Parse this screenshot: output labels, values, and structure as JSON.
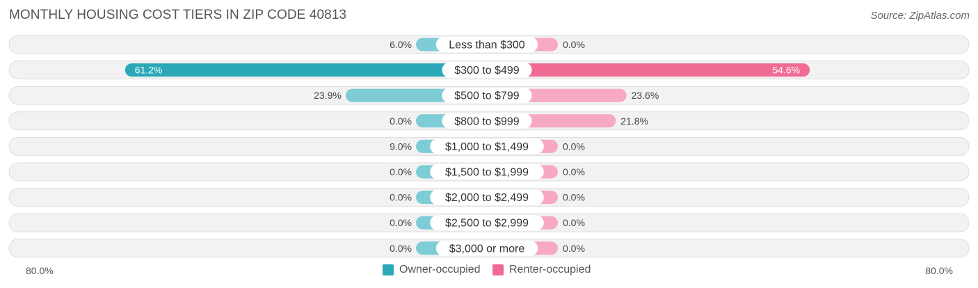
{
  "title": "MONTHLY HOUSING COST TIERS IN ZIP CODE 40813",
  "source": "Source: ZipAtlas.com",
  "colors": {
    "owner_strong": "#2aa8b8",
    "owner_light": "#7ecdd6",
    "renter_strong": "#f06b93",
    "renter_light": "#f7a8c3",
    "row_bg": "#f2f2f2",
    "row_border": "#dddddd"
  },
  "chart_data": {
    "type": "bar",
    "orientation": "horizontal-diverging",
    "categories": [
      "Less than $300",
      "$300 to $499",
      "$500 to $799",
      "$800 to $999",
      "$1,000 to $1,499",
      "$1,500 to $1,999",
      "$2,000 to $2,499",
      "$2,500 to $2,999",
      "$3,000 or more"
    ],
    "series": [
      {
        "name": "Owner-occupied",
        "side": "left",
        "values": [
          6.0,
          61.2,
          23.9,
          0.0,
          9.0,
          0.0,
          0.0,
          0.0,
          0.0
        ],
        "labels": [
          "6.0%",
          "61.2%",
          "23.9%",
          "0.0%",
          "9.0%",
          "0.0%",
          "0.0%",
          "0.0%",
          "0.0%"
        ]
      },
      {
        "name": "Renter-occupied",
        "side": "right",
        "values": [
          0.0,
          54.6,
          23.6,
          21.8,
          0.0,
          0.0,
          0.0,
          0.0,
          0.0
        ],
        "labels": [
          "0.0%",
          "54.6%",
          "23.6%",
          "21.8%",
          "0.0%",
          "0.0%",
          "0.0%",
          "0.0%",
          "0.0%"
        ]
      }
    ],
    "xlim": [
      -80,
      80
    ],
    "axis_left_label": "80.0%",
    "axis_right_label": "80.0%",
    "legend_position": "bottom-center"
  }
}
